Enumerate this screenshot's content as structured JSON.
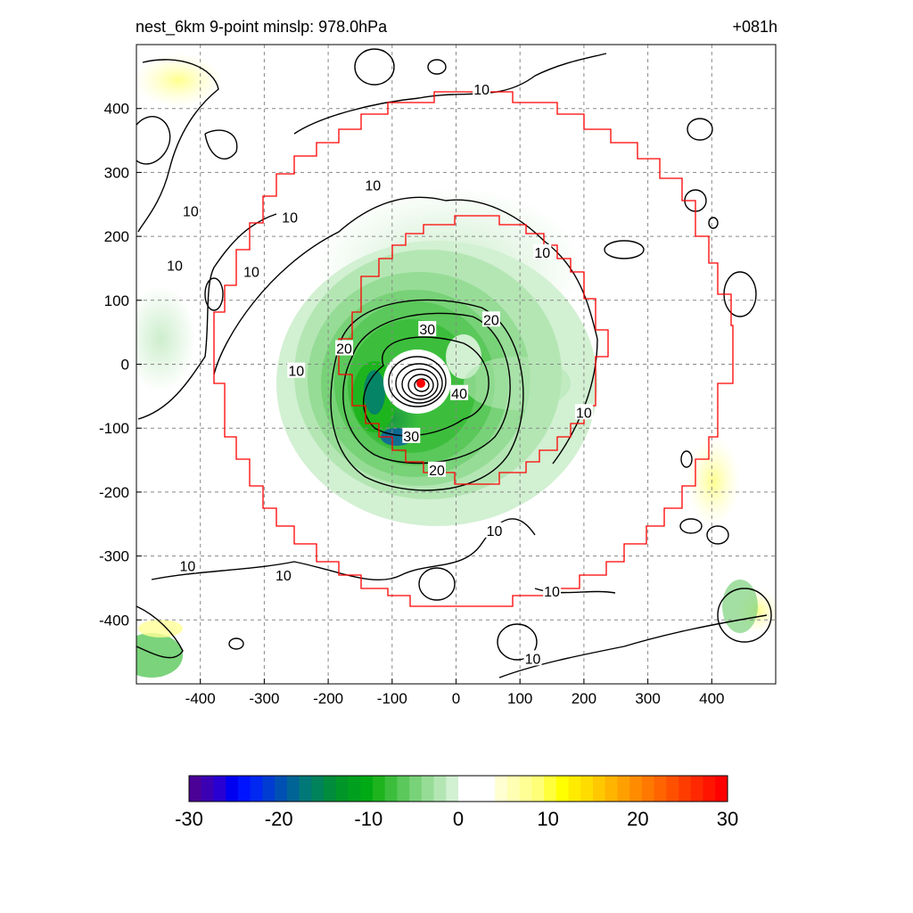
{
  "header": {
    "title": "nest_6km  9-point minslp: 978.0hPa",
    "forecast_hour": "+081h"
  },
  "chart_data": {
    "type": "heatmap",
    "x_range": [
      -500,
      500
    ],
    "y_range": [
      -500,
      500
    ],
    "x_ticks": [
      -400,
      -300,
      -200,
      -100,
      0,
      100,
      200,
      300,
      400
    ],
    "y_ticks": [
      -400,
      -300,
      -200,
      -100,
      0,
      100,
      200,
      300,
      400
    ],
    "grid": true,
    "center": {
      "x": -55,
      "y": -30,
      "color": "#ff0000"
    },
    "contour_labels": [
      {
        "text": "10",
        "x": -250,
        "y": -10
      },
      {
        "text": "10",
        "x": -130,
        "y": 280
      },
      {
        "text": "10",
        "x": -260,
        "y": 230
      },
      {
        "text": "10",
        "x": -320,
        "y": 145
      },
      {
        "text": "10",
        "x": -415,
        "y": 240
      },
      {
        "text": "10",
        "x": -440,
        "y": 155
      },
      {
        "text": "10",
        "x": 40,
        "y": 430
      },
      {
        "text": "10",
        "x": 135,
        "y": 175
      },
      {
        "text": "10",
        "x": 200,
        "y": -75
      },
      {
        "text": "10",
        "x": -270,
        "y": -330
      },
      {
        "text": "10",
        "x": -420,
        "y": -315
      },
      {
        "text": "10",
        "x": 60,
        "y": -260
      },
      {
        "text": "10",
        "x": 150,
        "y": -355
      },
      {
        "text": "10",
        "x": 120,
        "y": -460
      },
      {
        "text": "20",
        "x": 55,
        "y": 70
      },
      {
        "text": "20",
        "x": -175,
        "y": 25
      },
      {
        "text": "20",
        "x": -30,
        "y": -165
      },
      {
        "text": "30",
        "x": -45,
        "y": 55
      },
      {
        "text": "30",
        "x": -70,
        "y": -112
      },
      {
        "text": "40",
        "x": 5,
        "y": -45
      }
    ],
    "colorbar": {
      "ticks": [
        "-30",
        "-20",
        "-10",
        "0",
        "10",
        "20",
        "30"
      ],
      "range": [
        -30,
        30
      ],
      "colors": [
        "#4b0096",
        "#3c00b4",
        "#2800d2",
        "#0000f0",
        "#0014ff",
        "#0028f0",
        "#003cd2",
        "#0050b4",
        "#006496",
        "#007878",
        "#00825a",
        "#008c3c",
        "#009628",
        "#00a01e",
        "#00aa14",
        "#1eb41e",
        "#3cbe3c",
        "#5ac85a",
        "#78d278",
        "#96dc96",
        "#b4e6b4",
        "#d2f0d2",
        "#ffffff",
        "#ffffff",
        "#ffffff",
        "#ffffd2",
        "#ffffb4",
        "#ffff96",
        "#ffff78",
        "#ffff3c",
        "#ffff00",
        "#ffeb00",
        "#ffdc00",
        "#ffc800",
        "#ffb400",
        "#ffa000",
        "#ff8c00",
        "#ff7800",
        "#ff6400",
        "#ff5000",
        "#ff3c00",
        "#ff2800",
        "#ff1400",
        "#ff0000"
      ]
    }
  }
}
